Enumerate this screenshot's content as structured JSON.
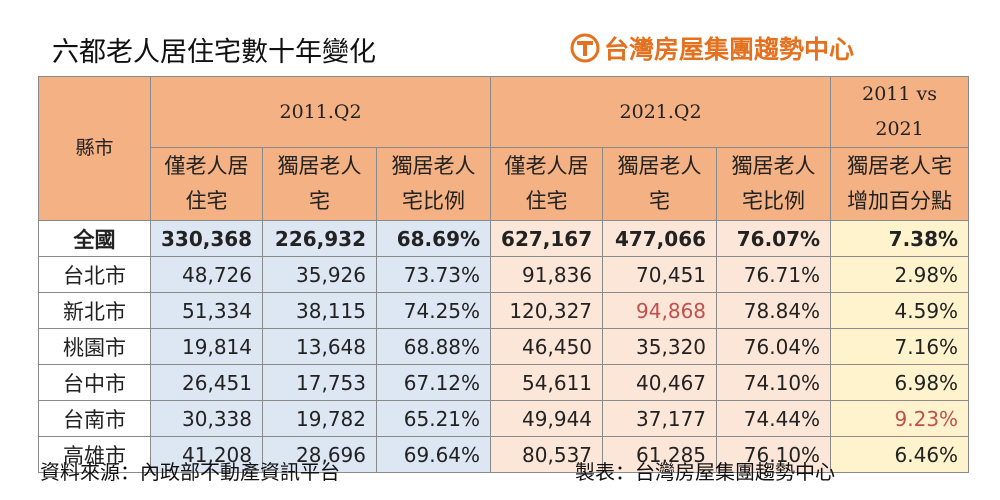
{
  "header": {
    "title": "六都老人居住宅數十年變化",
    "logo": "台灣房屋集團趨勢中心"
  },
  "table": {
    "group_headers": [
      "縣市",
      "2011.Q2",
      "2021.Q2",
      "2011 vs 2021"
    ],
    "columns": [
      "僅老人居住宅",
      "獨居老人宅",
      "獨居老人宅比例",
      "僅老人居住宅",
      "獨居老人宅",
      "獨居老人宅比例",
      "獨居老人宅增加百分點"
    ],
    "rows": [
      [
        "全國",
        "330,368",
        "226,932",
        "68.69%",
        "627,167",
        "477,066",
        "76.07%",
        "7.38%"
      ],
      [
        "台北市",
        "48,726",
        "35,926",
        "73.73%",
        "91,836",
        "70,451",
        "76.71%",
        "2.98%"
      ],
      [
        "新北市",
        "51,334",
        "38,115",
        "74.25%",
        "120,327",
        "94,868",
        "78.84%",
        "4.59%"
      ],
      [
        "桃園市",
        "19,814",
        "13,648",
        "68.88%",
        "46,450",
        "35,320",
        "76.04%",
        "7.16%"
      ],
      [
        "台中市",
        "26,451",
        "17,753",
        "67.12%",
        "54,611",
        "40,467",
        "74.10%",
        "6.98%"
      ],
      [
        "台南市",
        "30,338",
        "19,782",
        "65.21%",
        "49,944",
        "37,177",
        "74.44%",
        "9.23%"
      ],
      [
        "高雄市",
        "41,208",
        "28,696",
        "69.64%",
        "80,537",
        "61,285",
        "76.10%",
        "6.46%"
      ]
    ],
    "highlighted": [
      [
        2,
        5
      ],
      [
        5,
        7
      ]
    ],
    "highlight_color": "#c0504d"
  },
  "footer": {
    "source": "資料來源：內政部不動產資訊平台",
    "maker": "製表：台灣房屋集團趨勢中心"
  }
}
